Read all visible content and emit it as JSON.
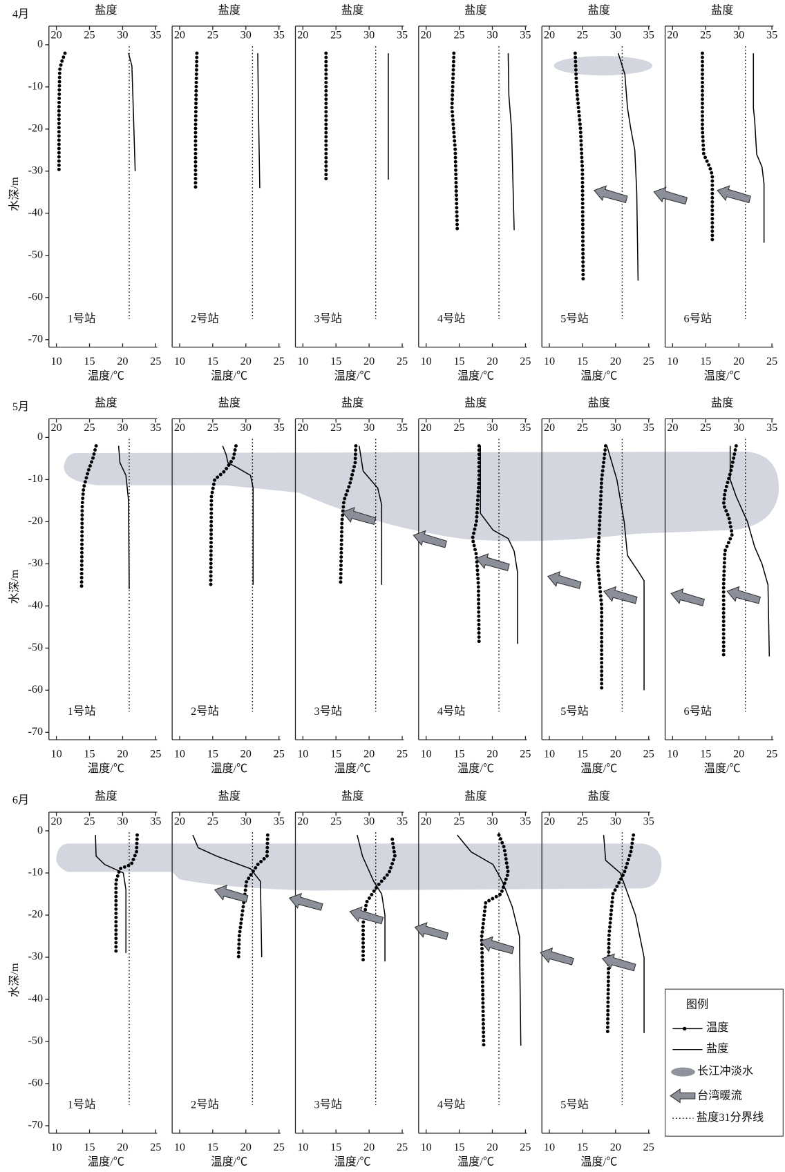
{
  "chart_data": [
    {
      "type": "line",
      "month": "4月",
      "station": "1号站",
      "x_label": "温度/℃",
      "x2_label": "盐度",
      "y_label": "水深/m",
      "xlim": [
        10,
        25
      ],
      "xticks": [
        10,
        15,
        20,
        25
      ],
      "x2lim": [
        20,
        35
      ],
      "x2ticks": [
        20,
        25,
        30,
        35
      ],
      "ylim": [
        0,
        -70
      ],
      "yticks": [
        0,
        -10,
        -20,
        -30,
        -40,
        -50,
        -60,
        -70
      ],
      "series": [
        {
          "name": "温度",
          "color": "#000000",
          "x": [
            11.3,
            10.8,
            10.5,
            10.4,
            10.4
          ],
          "y": [
            -2,
            -4,
            -6,
            -15,
            -30
          ]
        },
        {
          "name": "盐度",
          "axis": "x2",
          "color": "#000000",
          "x": [
            30.9,
            31.4,
            31.6,
            31.9
          ],
          "y": [
            -2,
            -5,
            -15,
            -30
          ]
        }
      ]
    },
    {
      "type": "line",
      "station": "2号站",
      "x_label": "温度/℃",
      "x2_label": "盐度",
      "xlim": [
        10,
        25
      ],
      "xticks": [
        10,
        15,
        20,
        25
      ],
      "x2lim": [
        20,
        35
      ],
      "x2ticks": [
        20,
        25,
        30,
        35
      ],
      "ylim": [
        0,
        -70
      ],
      "series": [
        {
          "name": "温度",
          "color": "#000000",
          "x": [
            12.6,
            12.5,
            12.4,
            12.4
          ],
          "y": [
            -2,
            -10,
            -20,
            -34
          ]
        },
        {
          "name": "盐度",
          "axis": "x2",
          "color": "#000000",
          "x": [
            31.8,
            31.9,
            32.1
          ],
          "y": [
            -2,
            -15,
            -34
          ]
        }
      ]
    },
    {
      "type": "line",
      "station": "3号站",
      "x_label": "温度/℃",
      "x2_label": "盐度",
      "xlim": [
        10,
        25
      ],
      "xticks": [
        10,
        15,
        20,
        25
      ],
      "x2lim": [
        20,
        35
      ],
      "x2ticks": [
        20,
        25,
        30,
        35
      ],
      "ylim": [
        0,
        -70
      ],
      "series": [
        {
          "name": "温度",
          "color": "#000000",
          "x": [
            13.5,
            13.5
          ],
          "y": [
            -2,
            -32
          ]
        },
        {
          "name": "盐度",
          "axis": "x2",
          "color": "#000000",
          "x": [
            32.9,
            32.9
          ],
          "y": [
            -2,
            -32
          ]
        }
      ]
    },
    {
      "type": "line",
      "station": "4号站",
      "x_label": "温度/℃",
      "x2_label": "盐度",
      "xlim": [
        10,
        25
      ],
      "xticks": [
        10,
        15,
        20,
        25
      ],
      "x2lim": [
        20,
        35
      ],
      "x2ticks": [
        20,
        25,
        30,
        35
      ],
      "ylim": [
        0,
        -70
      ],
      "series": [
        {
          "name": "温度",
          "color": "#000000",
          "x": [
            14.2,
            13.9,
            14.4,
            14.7
          ],
          "y": [
            -2,
            -15,
            -25,
            -44
          ]
        },
        {
          "name": "盐度",
          "axis": "x2",
          "color": "#000000",
          "x": [
            32.4,
            32.5,
            32.9,
            33.3
          ],
          "y": [
            -2,
            -12,
            -20,
            -44
          ]
        }
      ]
    },
    {
      "type": "line",
      "station": "5号站",
      "x_label": "温度/℃",
      "x2_label": "盐度",
      "xlim": [
        10,
        25
      ],
      "xticks": [
        10,
        15,
        20,
        25
      ],
      "x2lim": [
        20,
        35
      ],
      "x2ticks": [
        20,
        25,
        30,
        35
      ],
      "ylim": [
        0,
        -70
      ],
      "series": [
        {
          "name": "温度",
          "color": "#000000",
          "x": [
            13.9,
            14.1,
            14.7,
            15.0,
            15.1
          ],
          "y": [
            -2,
            -10,
            -20,
            -30,
            -56
          ]
        },
        {
          "name": "盐度",
          "axis": "x2",
          "color": "#000000",
          "x": [
            30.4,
            31.4,
            31.8,
            32.3,
            32.9,
            33.2,
            33.4
          ],
          "y": [
            -2,
            -7,
            -15,
            -20,
            -25,
            -35,
            -56
          ]
        }
      ]
    },
    {
      "type": "line",
      "station": "6号站",
      "x_label": "温度/℃",
      "x2_label": "盐度",
      "xlim": [
        10,
        25
      ],
      "xticks": [
        10,
        15,
        20,
        25
      ],
      "x2lim": [
        20,
        35
      ],
      "x2ticks": [
        20,
        25,
        30,
        35
      ],
      "ylim": [
        0,
        -70
      ],
      "series": [
        {
          "name": "温度",
          "color": "#000000",
          "x": [
            14.5,
            14.5,
            14.7,
            15.6,
            16.0,
            16.0
          ],
          "y": [
            -2,
            -20,
            -26,
            -29,
            -31,
            -47
          ]
        },
        {
          "name": "盐度",
          "axis": "x2",
          "color": "#000000",
          "x": [
            32.2,
            32.2,
            32.4,
            32.7,
            33.5,
            33.8,
            33.8
          ],
          "y": [
            -2,
            -15,
            -18,
            -26,
            -29,
            -33,
            -47
          ]
        }
      ]
    },
    {
      "type": "line",
      "month": "5月",
      "station": "1号站",
      "x_label": "温度/℃",
      "x2_label": "盐度",
      "y_label": "水深/m",
      "xlim": [
        10,
        25
      ],
      "xticks": [
        10,
        15,
        20,
        25
      ],
      "x2lim": [
        20,
        35
      ],
      "x2ticks": [
        20,
        25,
        30,
        35
      ],
      "ylim": [
        0,
        -70
      ],
      "yticks": [
        0,
        -10,
        -20,
        -30,
        -40,
        -50,
        -60,
        -70
      ],
      "series": [
        {
          "name": "温度",
          "color": "#000000",
          "x": [
            16.0,
            15.5,
            14.8,
            14.1,
            13.9,
            13.8
          ],
          "y": [
            -2,
            -5,
            -8,
            -12,
            -16,
            -36
          ]
        },
        {
          "name": "盐度",
          "axis": "x2",
          "color": "#000000",
          "x": [
            29.4,
            29.6,
            30.5,
            30.9,
            31.0
          ],
          "y": [
            -2,
            -6,
            -9,
            -15,
            -36
          ]
        }
      ]
    },
    {
      "type": "line",
      "station": "2号站",
      "x_label": "温度/℃",
      "x2_label": "盐度",
      "xlim": [
        10,
        25
      ],
      "xticks": [
        10,
        15,
        20,
        25
      ],
      "x2lim": [
        20,
        35
      ],
      "x2ticks": [
        20,
        25,
        30,
        35
      ],
      "ylim": [
        0,
        -70
      ],
      "series": [
        {
          "name": "温度",
          "color": "#000000",
          "x": [
            18.5,
            18.1,
            16.8,
            15.3,
            14.8,
            14.7
          ],
          "y": [
            -2,
            -5,
            -8,
            -10,
            -14,
            -35
          ]
        },
        {
          "name": "盐度",
          "axis": "x2",
          "color": "#000000",
          "x": [
            26.5,
            27.0,
            27.3,
            28.5,
            30.7,
            31.1,
            31.1
          ],
          "y": [
            -2,
            -4,
            -6,
            -7,
            -9,
            -12,
            -35
          ]
        }
      ]
    },
    {
      "type": "line",
      "station": "3号站",
      "x_label": "温度/℃",
      "x2_label": "盐度",
      "xlim": [
        10,
        25
      ],
      "xticks": [
        10,
        15,
        20,
        25
      ],
      "x2lim": [
        20,
        35
      ],
      "x2ticks": [
        20,
        25,
        30,
        35
      ],
      "ylim": [
        0,
        -70
      ],
      "series": [
        {
          "name": "温度",
          "color": "#000000",
          "x": [
            18.0,
            17.9,
            17.1,
            16.2,
            15.9,
            15.7
          ],
          "y": [
            -2,
            -6,
            -11,
            -15,
            -20,
            -35
          ]
        },
        {
          "name": "盐度",
          "axis": "x2",
          "color": "#000000",
          "x": [
            28.5,
            29.1,
            31.3,
            31.9,
            31.9
          ],
          "y": [
            -2,
            -8,
            -12,
            -16,
            -35
          ]
        }
      ]
    },
    {
      "type": "line",
      "station": "4号站",
      "x_label": "温度/℃",
      "x2_label": "盐度",
      "xlim": [
        10,
        25
      ],
      "xticks": [
        10,
        15,
        20,
        25
      ],
      "x2lim": [
        20,
        35
      ],
      "x2ticks": [
        20,
        25,
        30,
        35
      ],
      "ylim": [
        0,
        -70
      ],
      "series": [
        {
          "name": "温度",
          "color": "#000000",
          "x": [
            18.0,
            18.0,
            17.6,
            17.0,
            17.6,
            17.9,
            18.0
          ],
          "y": [
            -2,
            -10,
            -20,
            -24,
            -28,
            -35,
            -49
          ]
        },
        {
          "name": "盐度",
          "axis": "x2",
          "color": "#000000",
          "x": [
            28.2,
            28.2,
            30.1,
            32.4,
            33.3,
            33.8,
            33.8
          ],
          "y": [
            -2,
            -18,
            -22,
            -24,
            -27,
            -32,
            -49
          ]
        }
      ]
    },
    {
      "type": "line",
      "station": "5号站",
      "x_label": "温度/℃",
      "x2_label": "盐度",
      "xlim": [
        10,
        25
      ],
      "xticks": [
        10,
        15,
        20,
        25
      ],
      "x2lim": [
        20,
        35
      ],
      "x2ticks": [
        20,
        25,
        30,
        35
      ],
      "ylim": [
        0,
        -70
      ],
      "series": [
        {
          "name": "温度",
          "color": "#000000",
          "x": [
            18.5,
            17.9,
            17.6,
            17.3,
            17.9,
            17.9
          ],
          "y": [
            -2,
            -10,
            -20,
            -30,
            -40,
            -60
          ]
        },
        {
          "name": "盐度",
          "axis": "x2",
          "color": "#000000",
          "x": [
            28.7,
            30.2,
            31.3,
            31.8,
            33.5,
            34.3,
            34.3
          ],
          "y": [
            -2,
            -10,
            -20,
            -28,
            -32,
            -34,
            -60
          ]
        }
      ]
    },
    {
      "type": "line",
      "station": "6号站",
      "x_label": "温度/℃",
      "x2_label": "盐度",
      "xlim": [
        10,
        25
      ],
      "xticks": [
        10,
        15,
        20,
        25
      ],
      "x2lim": [
        20,
        35
      ],
      "x2ticks": [
        20,
        25,
        30,
        35
      ],
      "ylim": [
        0,
        -70
      ],
      "series": [
        {
          "name": "温度",
          "color": "#000000",
          "x": [
            19.6,
            18.8,
            17.9,
            17.7,
            18.5,
            19.0,
            17.9,
            17.7,
            17.7
          ],
          "y": [
            -2,
            -8,
            -13,
            -16,
            -19,
            -23,
            -27,
            -35,
            -52
          ]
        },
        {
          "name": "盐度",
          "axis": "x2",
          "color": "#000000",
          "x": [
            28.7,
            28.7,
            29.6,
            31.3,
            32.4,
            33.5,
            34.4,
            34.6
          ],
          "y": [
            -2,
            -10,
            -14,
            -20,
            -26,
            -30,
            -35,
            -52
          ]
        }
      ]
    },
    {
      "type": "line",
      "month": "6月",
      "station": "1号站",
      "x_label": "温度/℃",
      "x2_label": "盐度",
      "y_label": "水深/m",
      "xlim": [
        10,
        25
      ],
      "xticks": [
        10,
        15,
        20,
        25
      ],
      "x2lim": [
        20,
        35
      ],
      "x2ticks": [
        20,
        25,
        30,
        35
      ],
      "ylim": [
        0,
        -70
      ],
      "yticks": [
        0,
        -10,
        -20,
        -30,
        -40,
        -50,
        -60,
        -70
      ],
      "series": [
        {
          "name": "温度",
          "color": "#000000",
          "x": [
            22.2,
            22.1,
            21.3,
            19.6,
            19.0,
            19.0
          ],
          "y": [
            -1,
            -5,
            -8,
            -9,
            -12,
            -29
          ]
        },
        {
          "name": "盐度",
          "axis": "x2",
          "color": "#000000",
          "x": [
            25.9,
            26.0,
            27.3,
            30.1,
            30.5,
            30.5
          ],
          "y": [
            -1,
            -6,
            -8,
            -10,
            -14,
            -29
          ]
        }
      ]
    },
    {
      "type": "line",
      "station": "2号站",
      "x_label": "温度/℃",
      "x2_label": "盐度",
      "xlim": [
        10,
        25
      ],
      "xticks": [
        10,
        15,
        20,
        25
      ],
      "x2lim": [
        20,
        35
      ],
      "x2ticks": [
        20,
        25,
        30,
        35
      ],
      "ylim": [
        0,
        -70
      ],
      "series": [
        {
          "name": "温度",
          "color": "#000000",
          "x": [
            23.3,
            23.2,
            21.8,
            20.1,
            19.6,
            19.0,
            18.9
          ],
          "y": [
            -1,
            -6,
            -8,
            -12,
            -18,
            -25,
            -30
          ]
        },
        {
          "name": "盐度",
          "axis": "x2",
          "color": "#000000",
          "x": [
            22.0,
            22.8,
            25.6,
            30.7,
            32.2,
            32.4
          ],
          "y": [
            -1,
            -4,
            -6,
            -9,
            -12,
            -30
          ]
        }
      ]
    },
    {
      "type": "line",
      "station": "3号站",
      "x_label": "温度/℃",
      "x2_label": "盐度",
      "xlim": [
        10,
        25
      ],
      "xticks": [
        10,
        15,
        20,
        25
      ],
      "x2lim": [
        20,
        35
      ],
      "x2ticks": [
        20,
        25,
        30,
        35
      ],
      "ylim": [
        0,
        -70
      ],
      "series": [
        {
          "name": "温度",
          "color": "#000000",
          "x": [
            23.5,
            23.9,
            23.0,
            21.3,
            19.6,
            19.1,
            19.1
          ],
          "y": [
            -2,
            -6,
            -10,
            -13,
            -17,
            -22,
            -31
          ]
        },
        {
          "name": "盐度",
          "axis": "x2",
          "color": "#000000",
          "x": [
            28.2,
            29.0,
            30.7,
            31.9,
            32.4,
            32.4
          ],
          "y": [
            -1,
            -6,
            -12,
            -15,
            -20,
            -31
          ]
        }
      ]
    },
    {
      "type": "line",
      "station": "4号站",
      "x_label": "温度/℃",
      "x2_label": "盐度",
      "xlim": [
        10,
        25
      ],
      "xticks": [
        10,
        15,
        20,
        25
      ],
      "x2lim": [
        20,
        35
      ],
      "x2ticks": [
        20,
        25,
        30,
        35
      ],
      "ylim": [
        0,
        -70
      ],
      "series": [
        {
          "name": "温度",
          "color": "#000000",
          "x": [
            21.0,
            21.8,
            22.4,
            21.3,
            19.0,
            18.4,
            18.7
          ],
          "y": [
            -1,
            -4,
            -10,
            -15,
            -17,
            -25,
            -51
          ]
        },
        {
          "name": "盐度",
          "axis": "x2",
          "color": "#000000",
          "x": [
            24.7,
            26.8,
            30.1,
            31.5,
            33.0,
            34.1,
            34.3
          ],
          "y": [
            -1,
            -5,
            -8,
            -12,
            -18,
            -25,
            -51
          ]
        }
      ]
    },
    {
      "type": "line",
      "station": "5号站",
      "x_label": "温度/℃",
      "x2_label": "盐度",
      "xlim": [
        10,
        25
      ],
      "xticks": [
        10,
        15,
        20,
        25
      ],
      "x2lim": [
        20,
        35
      ],
      "x2ticks": [
        20,
        25,
        30,
        35
      ],
      "ylim": [
        0,
        -70
      ],
      "series": [
        {
          "name": "温度",
          "color": "#000000",
          "x": [
            22.7,
            22.3,
            21.3,
            19.6,
            19.0,
            18.8
          ],
          "y": [
            -1,
            -5,
            -10,
            -15,
            -25,
            -48
          ]
        },
        {
          "name": "盐度",
          "axis": "x2",
          "color": "#000000",
          "x": [
            28.2,
            28.5,
            30.7,
            33.0,
            34.3,
            34.3
          ],
          "y": [
            -1,
            -7,
            -10,
            -20,
            -30,
            -48
          ]
        }
      ]
    }
  ],
  "salinity_boundary": 31,
  "legend": {
    "title": "图例",
    "items": [
      "长江冲淡水",
      "台湾暖流",
      "盐度31分界线"
    ]
  }
}
